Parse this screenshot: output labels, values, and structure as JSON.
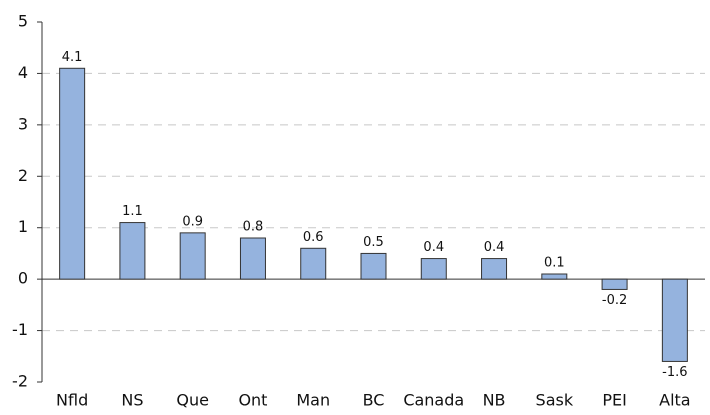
{
  "chart_data": {
    "type": "bar",
    "categories": [
      "Nfld",
      "NS",
      "Que",
      "Ont",
      "Man",
      "BC",
      "Canada",
      "NB",
      "Sask",
      "PEI",
      "Alta"
    ],
    "values": [
      4.1,
      1.1,
      0.9,
      0.8,
      0.6,
      0.5,
      0.4,
      0.4,
      0.1,
      -0.2,
      -1.6
    ],
    "color": "#95b3de",
    "ylim": [
      -2,
      5
    ],
    "yticks": [
      -2,
      -1,
      0,
      1,
      2,
      3,
      4,
      5
    ],
    "grid": true
  }
}
